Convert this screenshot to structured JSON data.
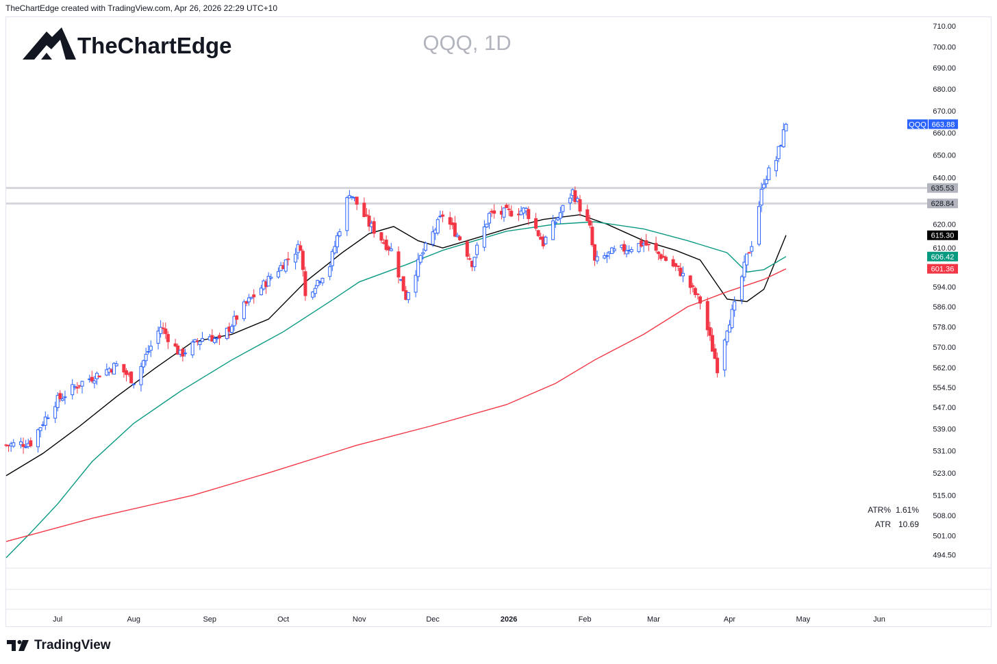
{
  "header": {
    "attribution": "TheChartEdge created with TradingView.com, Apr 26, 2026 22:29 UTC+10"
  },
  "brand": {
    "name": "TheChartEdge"
  },
  "footer": {
    "name": "TradingView"
  },
  "colors": {
    "up": "#2962ff",
    "down": "#f23645",
    "sma_short": "#000000",
    "sma_mid": "#089981",
    "sma_long": "#f23645",
    "level": "#b2b5be"
  },
  "chart_data": {
    "type": "candlestick",
    "title": "QQQ, 1D",
    "symbol": "QQQ",
    "last_price": "663.88",
    "price_scale": "log",
    "ylim": [
      490,
      714
    ],
    "xlim": [
      "2025-06-10",
      "2026-06-20"
    ],
    "y_ticks": [
      "710.00",
      "700.00",
      "690.00",
      "680.00",
      "670.00",
      "660.00",
      "650.00",
      "640.00",
      "620.00",
      "610.00",
      "594.00",
      "586.00",
      "578.00",
      "570.00",
      "562.00",
      "554.50",
      "547.00",
      "539.00",
      "531.00",
      "523.00",
      "515.00",
      "508.00",
      "501.00",
      "494.50"
    ],
    "x_ticks": [
      {
        "date": "2025-07-01",
        "label": "Jul",
        "bold": false
      },
      {
        "date": "2025-08-01",
        "label": "Aug",
        "bold": false
      },
      {
        "date": "2025-09-01",
        "label": "Sep",
        "bold": false
      },
      {
        "date": "2025-10-01",
        "label": "Oct",
        "bold": false
      },
      {
        "date": "2025-11-01",
        "label": "Nov",
        "bold": false
      },
      {
        "date": "2025-12-01",
        "label": "Dec",
        "bold": false
      },
      {
        "date": "2026-01-01",
        "label": "2026",
        "bold": true
      },
      {
        "date": "2026-02-01",
        "label": "Feb",
        "bold": false
      },
      {
        "date": "2026-03-01",
        "label": "Mar",
        "bold": false
      },
      {
        "date": "2026-04-01",
        "label": "Apr",
        "bold": false
      },
      {
        "date": "2026-05-01",
        "label": "May",
        "bold": false
      },
      {
        "date": "2026-06-01",
        "label": "Jun",
        "bold": false
      }
    ],
    "levels": [
      {
        "value": 635.53,
        "label": "635.53"
      },
      {
        "value": 628.84,
        "label": "628.84"
      }
    ],
    "price_labels": [
      {
        "value": 615.3,
        "label": "615.30",
        "color": "#000000"
      },
      {
        "value": 606.42,
        "label": "606.42",
        "color": "#089981"
      },
      {
        "value": 601.36,
        "label": "601.36",
        "color": "#f23645"
      }
    ],
    "indicators": [
      {
        "name": "ATR%",
        "value": "1.61%"
      },
      {
        "name": "ATR",
        "value": "10.69"
      }
    ],
    "moving_averages": [
      {
        "color": "#000000",
        "points": [
          [
            "2025-06-10",
            522
          ],
          [
            "2025-06-25",
            530
          ],
          [
            "2025-07-10",
            540
          ],
          [
            "2025-07-25",
            551
          ],
          [
            "2025-08-10",
            562
          ],
          [
            "2025-08-25",
            572
          ],
          [
            "2025-09-10",
            575
          ],
          [
            "2025-09-25",
            581
          ],
          [
            "2025-10-10",
            596
          ],
          [
            "2025-10-25",
            608
          ],
          [
            "2025-11-05",
            616
          ],
          [
            "2025-11-15",
            619
          ],
          [
            "2025-11-25",
            613
          ],
          [
            "2025-12-05",
            610
          ],
          [
            "2025-12-15",
            613
          ],
          [
            "2025-12-31",
            618
          ],
          [
            "2026-01-15",
            622
          ],
          [
            "2026-01-30",
            624
          ],
          [
            "2026-02-10",
            620
          ],
          [
            "2026-02-25",
            613
          ],
          [
            "2026-03-10",
            609
          ],
          [
            "2026-03-20",
            605
          ],
          [
            "2026-03-31",
            589
          ],
          [
            "2026-04-08",
            588
          ],
          [
            "2026-04-15",
            593
          ],
          [
            "2026-04-24",
            615.3
          ]
        ]
      },
      {
        "color": "#089981",
        "points": [
          [
            "2025-06-10",
            493.5
          ],
          [
            "2025-06-20",
            502
          ],
          [
            "2025-07-01",
            512
          ],
          [
            "2025-07-15",
            527
          ],
          [
            "2025-08-01",
            541
          ],
          [
            "2025-08-20",
            553
          ],
          [
            "2025-09-10",
            565
          ],
          [
            "2025-10-01",
            576
          ],
          [
            "2025-10-20",
            588
          ],
          [
            "2025-11-01",
            596
          ],
          [
            "2025-11-20",
            603
          ],
          [
            "2025-12-05",
            609
          ],
          [
            "2025-12-31",
            617
          ],
          [
            "2026-01-20",
            620
          ],
          [
            "2026-02-05",
            621
          ],
          [
            "2026-02-25",
            618
          ],
          [
            "2026-03-15",
            613
          ],
          [
            "2026-03-31",
            608
          ],
          [
            "2026-04-08",
            600
          ],
          [
            "2026-04-15",
            601
          ],
          [
            "2026-04-24",
            606.42
          ]
        ]
      },
      {
        "color": "#f23645",
        "points": [
          [
            "2025-06-10",
            499
          ],
          [
            "2025-07-15",
            507
          ],
          [
            "2025-08-25",
            515
          ],
          [
            "2025-09-25",
            523
          ],
          [
            "2025-10-31",
            533
          ],
          [
            "2025-11-30",
            540
          ],
          [
            "2025-12-31",
            548
          ],
          [
            "2026-01-20",
            556
          ],
          [
            "2026-02-05",
            565
          ],
          [
            "2026-02-25",
            575
          ],
          [
            "2026-03-15",
            586
          ],
          [
            "2026-03-31",
            592
          ],
          [
            "2026-04-15",
            597
          ],
          [
            "2026-04-24",
            601.36
          ]
        ]
      }
    ],
    "anchors": [
      [
        "2025-06-10",
        533
      ],
      [
        "2025-06-20",
        534
      ],
      [
        "2025-06-30",
        549
      ],
      [
        "2025-07-10",
        556
      ],
      [
        "2025-07-25",
        563
      ],
      [
        "2025-08-01",
        557
      ],
      [
        "2025-08-12",
        578
      ],
      [
        "2025-08-20",
        567
      ],
      [
        "2025-08-31",
        575
      ],
      [
        "2025-09-05",
        572
      ],
      [
        "2025-09-15",
        586
      ],
      [
        "2025-09-25",
        597
      ],
      [
        "2025-10-08",
        611
      ],
      [
        "2025-10-10",
        590
      ],
      [
        "2025-10-20",
        603
      ],
      [
        "2025-10-28",
        634
      ],
      [
        "2025-11-05",
        620
      ],
      [
        "2025-11-14",
        609
      ],
      [
        "2025-11-20",
        590
      ],
      [
        "2025-11-26",
        606
      ],
      [
        "2025-12-05",
        624
      ],
      [
        "2025-12-12",
        614
      ],
      [
        "2025-12-17",
        604
      ],
      [
        "2025-12-24",
        624
      ],
      [
        "2026-01-08",
        626
      ],
      [
        "2026-01-15",
        612
      ],
      [
        "2026-01-27",
        634
      ],
      [
        "2026-02-03",
        618
      ],
      [
        "2026-02-05",
        604
      ],
      [
        "2026-02-12",
        608
      ],
      [
        "2026-02-25",
        612
      ],
      [
        "2026-03-05",
        606
      ],
      [
        "2026-03-12",
        600
      ],
      [
        "2026-03-20",
        588
      ],
      [
        "2026-03-27",
        562
      ],
      [
        "2026-03-31",
        578
      ],
      [
        "2026-04-03",
        586
      ],
      [
        "2026-04-08",
        606
      ],
      [
        "2026-04-10",
        612
      ],
      [
        "2026-04-15",
        639
      ],
      [
        "2026-04-20",
        648
      ],
      [
        "2026-04-24",
        663.88
      ]
    ]
  }
}
